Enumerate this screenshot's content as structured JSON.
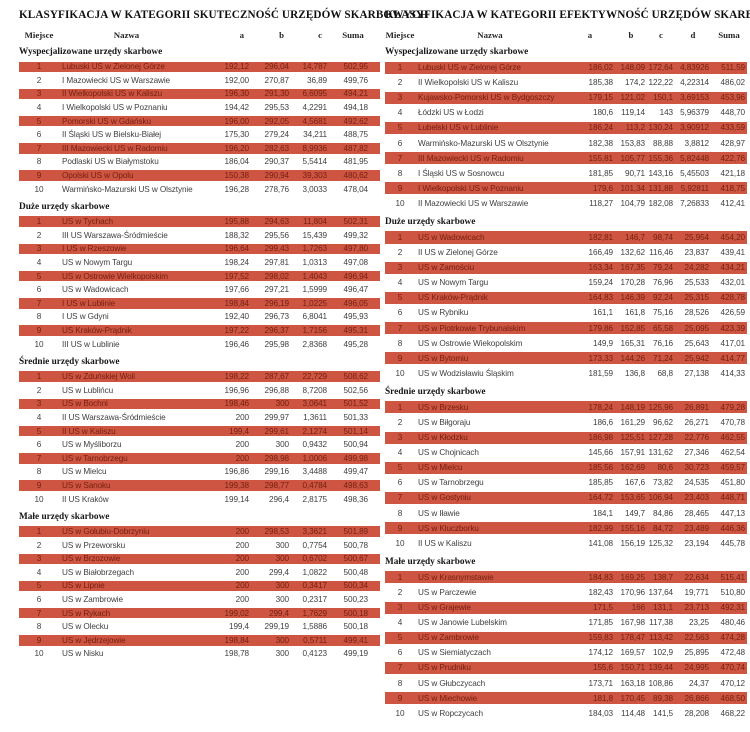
{
  "colors": {
    "highlight_row_bg": "#cd5541",
    "highlight_row_text": "#772012",
    "row_text": "#3f3f3f",
    "heading_text": "#101010"
  },
  "tables": [
    {
      "title": "KLASYFIKACJA W KATEGORII SKUTECZNOŚĆ URZĘDÓW SKARBOWYCH",
      "columns": [
        "Miejsce",
        "Nazwa",
        "a",
        "b",
        "c",
        "Suma"
      ],
      "sections": [
        {
          "name": "Wyspecjalizowane urzędy skarbowe",
          "rows": [
            [
              "1",
              "Lubuski US w Zielonej Górze",
              "192,12",
              "296,04",
              "14,787",
              "502,95"
            ],
            [
              "2",
              "I Mazowiecki US w Warszawie",
              "192,00",
              "270,87",
              "36,89",
              "499,76"
            ],
            [
              "3",
              "II Wielkopolski US w Kaliszu",
              "196,30",
              "291,30",
              "6,6095",
              "494,21"
            ],
            [
              "4",
              "I Wielkopolski US w Poznaniu",
              "194,42",
              "295,53",
              "4,2291",
              "494,18"
            ],
            [
              "5",
              "Pomorski US w Gdańsku",
              "196,00",
              "292,05",
              "4,5681",
              "492,62"
            ],
            [
              "6",
              "II Śląski US w Bielsku-Białej",
              "175,30",
              "279,24",
              "34,211",
              "488,75"
            ],
            [
              "7",
              "III Mazowiecki US w Radomiu",
              "196,20",
              "282,63",
              "8,9936",
              "487,82"
            ],
            [
              "8",
              "Podlaski US w Białymstoku",
              "186,04",
              "290,37",
              "5,5414",
              "481,95"
            ],
            [
              "9",
              "Opolski US w Opolu",
              "150,38",
              "290,94",
              "39,303",
              "480,62"
            ],
            [
              "10",
              "Warmińsko-Mazurski US w Olsztynie",
              "196,28",
              "278,76",
              "3,0033",
              "478,04"
            ]
          ]
        },
        {
          "name": "Duże urzędy skarbowe",
          "rows": [
            [
              "1",
              "US w Tychach",
              "195,88",
              "294,63",
              "11,804",
              "502,31"
            ],
            [
              "2",
              "III US Warszawa-Śródmieście",
              "188,32",
              "295,56",
              "15,439",
              "499,32"
            ],
            [
              "3",
              "I US w Rzeszowie",
              "196,64",
              "299,43",
              "1,7263",
              "497,80"
            ],
            [
              "4",
              "US w Nowym Targu",
              "198,24",
              "297,81",
              "1,0313",
              "497,08"
            ],
            [
              "5",
              "US w Ostrowie Wielkopolskim",
              "197,52",
              "298,02",
              "1,4043",
              "496,94"
            ],
            [
              "6",
              "US w Wadowicach",
              "197,66",
              "297,21",
              "1,5999",
              "496,47"
            ],
            [
              "7",
              "I US w Lublinie",
              "198,84",
              "296,19",
              "1,0225",
              "496,05"
            ],
            [
              "8",
              "I US w Gdyni",
              "192,40",
              "296,73",
              "6,8041",
              "495,93"
            ],
            [
              "9",
              "US Kraków-Prądnik",
              "197,22",
              "296,37",
              "1,7156",
              "495,31"
            ],
            [
              "10",
              "III US w Lublinie",
              "196,46",
              "295,98",
              "2,8368",
              "495,28"
            ]
          ]
        },
        {
          "name": "Średnie urzędy skarbowe",
          "rows": [
            [
              "1",
              "US w Zduńskiej Woli",
              "198,22",
              "287,67",
              "22,729",
              "508,62"
            ],
            [
              "2",
              "US w Lublińcu",
              "196,96",
              "296,88",
              "8,7208",
              "502,56"
            ],
            [
              "3",
              "US w Bochni",
              "198,46",
              "300",
              "3,0641",
              "501,52"
            ],
            [
              "4",
              "II US Warszawa-Śródmieście",
              "200",
              "299,97",
              "1,3611",
              "501,33"
            ],
            [
              "5",
              "II US w Kaliszu",
              "199,4",
              "299,61",
              "2,1274",
              "501,14"
            ],
            [
              "6",
              "US w Myśliborzu",
              "200",
              "300",
              "0,9432",
              "500,94"
            ],
            [
              "7",
              "US w Tarnobrzegu",
              "200",
              "298,98",
              "1,0006",
              "499,98"
            ],
            [
              "8",
              "US w Mielcu",
              "196,86",
              "299,16",
              "3,4488",
              "499,47"
            ],
            [
              "9",
              "US w Sanoku",
              "199,38",
              "298,77",
              "0,4784",
              "498,63"
            ],
            [
              "10",
              "II US Kraków",
              "199,14",
              "296,4",
              "2,8175",
              "498,36"
            ]
          ]
        },
        {
          "name": "Małe urzędy skarbowe",
          "rows": [
            [
              "1",
              "US w Golubiu-Dobrzyniu",
              "200",
              "298,53",
              "3,3621",
              "501,89"
            ],
            [
              "2",
              "US w Przeworsku",
              "200",
              "300",
              "0,7754",
              "500,78"
            ],
            [
              "3",
              "US w Brzozowie",
              "200",
              "300",
              "0,6702",
              "500,67"
            ],
            [
              "4",
              "US w Białobrzegach",
              "200",
              "299,4",
              "1,0822",
              "500,48"
            ],
            [
              "5",
              "US w Lipnie",
              "200",
              "300",
              "0,3417",
              "500,34"
            ],
            [
              "6",
              "US w Zambrowie",
              "200",
              "300",
              "0,2317",
              "500,23"
            ],
            [
              "7",
              "US w Rykach",
              "199,02",
              "299,4",
              "1,7629",
              "500,18"
            ],
            [
              "8",
              "US w Olecku",
              "199,4",
              "299,19",
              "1,5886",
              "500,18"
            ],
            [
              "9",
              "US w Jędrzejowie",
              "198,84",
              "300",
              "0,5711",
              "499,41"
            ],
            [
              "10",
              "US w Nisku",
              "198,78",
              "300",
              "0,4123",
              "499,19"
            ]
          ]
        }
      ]
    },
    {
      "title": "KLASYFIKACJA W KATEGORII EFEKTYWNOŚĆ URZĘDÓW SKARBOWYCH",
      "columns": [
        "Miejsce",
        "Nazwa",
        "a",
        "b",
        "c",
        "d",
        "Suma"
      ],
      "sections": [
        {
          "name": "Wyspecjalizowane urzędy skarbowe",
          "rows": [
            [
              "1",
              "Lubuski US w Zielonej Górze",
              "186,02",
              "148,09",
              "172,64",
              "4,83926",
              "511,59"
            ],
            [
              "2",
              "II Wielkopolski US w Kaliszu",
              "185,38",
              "174,2",
              "122,22",
              "4,22314",
              "486,02"
            ],
            [
              "3",
              "Kujawsko-Pomorski US w Bydgoszczy",
              "179,15",
              "121,02",
              "150,1",
              "3,69153",
              "453,96"
            ],
            [
              "4",
              "Łódzki US w Łodzi",
              "180,6",
              "119,14",
              "143",
              "5,96379",
              "448,70"
            ],
            [
              "5",
              "Lubelski US w Lublinie",
              "186,24",
              "113,2",
              "130,24",
              "3,90912",
              "433,59"
            ],
            [
              "6",
              "Warmińsko-Mazurski US w Olsztynie",
              "182,38",
              "153,83",
              "88,88",
              "3,8812",
              "428,97"
            ],
            [
              "7",
              "III Mazowiecki US w Radomiu",
              "155,81",
              "105,77",
              "155,36",
              "5,82448",
              "422,76"
            ],
            [
              "8",
              "I Śląski US w Sosnowcu",
              "181,85",
              "90,71",
              "143,16",
              "5,45503",
              "421,18"
            ],
            [
              "9",
              "I Wielkopolski US w Poznaniu",
              "179,6",
              "101,34",
              "131,88",
              "5,92811",
              "418,75"
            ],
            [
              "10",
              "II Mazowiecki US w Warszawie",
              "118,27",
              "104,79",
              "182,08",
              "7,26833",
              "412,41"
            ]
          ]
        },
        {
          "name": "Duże urzędy skarbowe",
          "rows": [
            [
              "1",
              "US w Wadowicach",
              "182,81",
              "146,7",
              "98,74",
              "25,954",
              "454,20"
            ],
            [
              "2",
              "II US w Zielonej Górze",
              "166,49",
              "132,62",
              "116,46",
              "23,837",
              "439,41"
            ],
            [
              "3",
              "US w Zamościu",
              "163,34",
              "167,35",
              "79,24",
              "24,282",
              "434,21"
            ],
            [
              "4",
              "US w Nowym Targu",
              "159,24",
              "170,28",
              "76,96",
              "25,533",
              "432,01"
            ],
            [
              "5",
              "US Kraków-Prądnik",
              "164,83",
              "146,39",
              "92,24",
              "25,315",
              "428,78"
            ],
            [
              "6",
              "US w Rybniku",
              "161,1",
              "161,8",
              "75,16",
              "28,526",
              "426,59"
            ],
            [
              "7",
              "US w Piotrkowie Trybunalskim",
              "179,86",
              "152,85",
              "65,58",
              "25,095",
              "423,39"
            ],
            [
              "8",
              "US w Ostrowie Wiekopolskim",
              "149,9",
              "165,31",
              "76,16",
              "25,643",
              "417,01"
            ],
            [
              "9",
              "US w Bytomiu",
              "173,33",
              "144,26",
              "71,24",
              "25,942",
              "414,77"
            ],
            [
              "10",
              "US w Wodzisławiu Śląskim",
              "181,59",
              "136,8",
              "68,8",
              "27,138",
              "414,33"
            ]
          ]
        },
        {
          "name": "Średnie urzędy skarbowe",
          "rows": [
            [
              "1",
              "US w Brzesku",
              "178,24",
              "148,19",
              "125,96",
              "26,891",
              "479,28"
            ],
            [
              "2",
              "US w Biłgoraju",
              "186,6",
              "161,29",
              "96,62",
              "26,271",
              "470,78"
            ],
            [
              "3",
              "US w Kłodzku",
              "186,98",
              "125,51",
              "127,28",
              "22,776",
              "462,55"
            ],
            [
              "4",
              "US w Chojnicach",
              "145,66",
              "157,91",
              "131,62",
              "27,346",
              "462,54"
            ],
            [
              "5",
              "US w Mielcu",
              "185,56",
              "162,69",
              "80,6",
              "30,723",
              "459,57"
            ],
            [
              "6",
              "US w Tarnobrzegu",
              "185,85",
              "167,6",
              "73,82",
              "24,535",
              "451,80"
            ],
            [
              "7",
              "US w Gostyniu",
              "164,72",
              "153,65",
              "106,94",
              "23,403",
              "448,71"
            ],
            [
              "8",
              "US w Iławie",
              "184,1",
              "149,7",
              "84,86",
              "28,465",
              "447,13"
            ],
            [
              "9",
              "US w Kluczborku",
              "182,99",
              "155,16",
              "84,72",
              "23,489",
              "446,36"
            ],
            [
              "10",
              "II US w Kaliszu",
              "141,08",
              "156,19",
              "125,32",
              "23,194",
              "445,78"
            ]
          ]
        },
        {
          "name": "Małe urzędy skarbowe",
          "rows": [
            [
              "1",
              "US w Krasnymstawie",
              "184,83",
              "169,25",
              "138,7",
              "22,634",
              "515,41"
            ],
            [
              "2",
              "US w Parczewie",
              "182,43",
              "170,96",
              "137,64",
              "19,771",
              "510,80"
            ],
            [
              "3",
              "US w Grajewie",
              "171,5",
              "166",
              "131,1",
              "23,713",
              "492,31"
            ],
            [
              "4",
              "US w Janowie Lubelskim",
              "171,85",
              "167,98",
              "117,38",
              "23,25",
              "480,46"
            ],
            [
              "5",
              "US w Zambrowie",
              "159,83",
              "178,47",
              "113,42",
              "22,563",
              "474,28"
            ],
            [
              "6",
              "US w Siemiatyczach",
              "174,12",
              "169,57",
              "102,9",
              "25,895",
              "472,48"
            ],
            [
              "7",
              "US w Prudniku",
              "155,6",
              "150,71",
              "139,44",
              "24,995",
              "470,74"
            ],
            [
              "8",
              "US w Głubczycach",
              "173,71",
              "163,18",
              "108,86",
              "24,37",
              "470,12"
            ],
            [
              "9",
              "US w Miechowie",
              "181,8",
              "170,45",
              "89,38",
              "26,866",
              "468,50"
            ],
            [
              "10",
              "US w Ropczycach",
              "184,03",
              "114,48",
              "141,5",
              "28,208",
              "468,22"
            ]
          ]
        }
      ]
    }
  ]
}
